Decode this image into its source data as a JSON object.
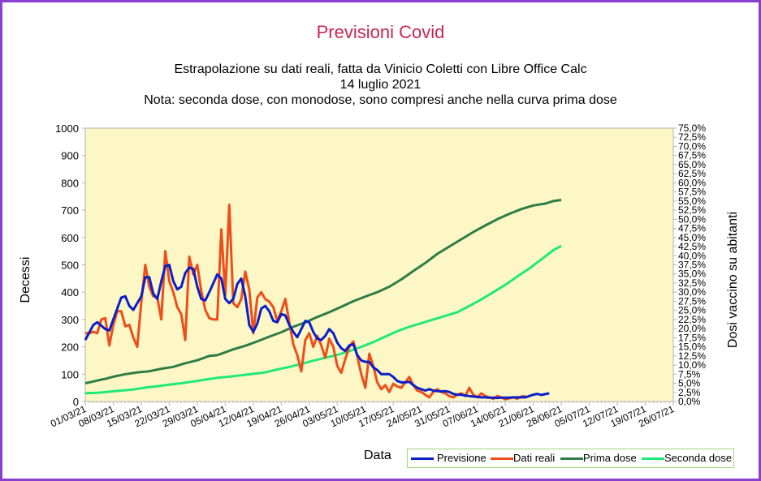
{
  "chart_data": {
    "type": "line",
    "title": "Previsioni Covid",
    "subtitle_lines": [
      "Estrapolazione su dati reali, fatta da Vinicio Coletti con Libre Office Calc",
      "14 luglio 2021",
      "Nota: seconda dose, con monodose, sono compresi anche nella curva prima dose"
    ],
    "xlabel": "Data",
    "ylabel": "Decessi",
    "y2label": "Dosi vaccino su abitanti",
    "ylim": [
      0,
      1000
    ],
    "y2lim": [
      0,
      75
    ],
    "y_ticks": [
      "0",
      "100",
      "200",
      "300",
      "400",
      "500",
      "600",
      "700",
      "800",
      "900",
      "1000"
    ],
    "y2_ticks": [
      "0,0%",
      "2,5%",
      "5,0%",
      "7,5%",
      "10,0%",
      "12,5%",
      "15,0%",
      "17,5%",
      "20,0%",
      "22,5%",
      "25,0%",
      "27,5%",
      "30,0%",
      "32,5%",
      "35,0%",
      "37,5%",
      "40,0%",
      "42,5%",
      "45,0%",
      "47,5%",
      "50,0%",
      "52,5%",
      "55,0%",
      "57,5%",
      "60,0%",
      "62,5%",
      "65,0%",
      "67,5%",
      "70,0%",
      "72,5%",
      "75,0%"
    ],
    "x_ticks": [
      "01/03/21",
      "08/03/21",
      "15/03/21",
      "22/03/21",
      "29/03/21",
      "05/04/21",
      "12/04/21",
      "19/04/21",
      "26/04/21",
      "03/05/21",
      "10/05/21",
      "17/05/21",
      "24/05/21",
      "31/05/21",
      "07/06/21",
      "14/06/21",
      "21/06/21",
      "28/06/21",
      "05/07/21",
      "12/07/21",
      "19/07/21",
      "26/07/21"
    ],
    "grid": false,
    "legend_position": "bottom-right",
    "series": [
      {
        "name": "Previsione",
        "axis": "left",
        "color": "#0a1fc8",
        "points": [
          [
            0,
            225
          ],
          [
            2,
            280
          ],
          [
            3,
            290
          ],
          [
            5,
            265
          ],
          [
            6,
            260
          ],
          [
            8,
            340
          ],
          [
            9,
            380
          ],
          [
            10,
            385
          ],
          [
            11,
            350
          ],
          [
            12,
            335
          ],
          [
            14,
            385
          ],
          [
            15,
            455
          ],
          [
            16,
            455
          ],
          [
            17,
            395
          ],
          [
            18,
            375
          ],
          [
            19,
            440
          ],
          [
            20,
            495
          ],
          [
            21,
            500
          ],
          [
            22,
            440
          ],
          [
            23,
            410
          ],
          [
            24,
            420
          ],
          [
            25,
            470
          ],
          [
            26,
            490
          ],
          [
            27,
            485
          ],
          [
            28,
            420
          ],
          [
            29,
            375
          ],
          [
            30,
            370
          ],
          [
            31,
            400
          ],
          [
            33,
            465
          ],
          [
            34,
            450
          ],
          [
            35,
            375
          ],
          [
            36,
            360
          ],
          [
            37,
            375
          ],
          [
            38,
            430
          ],
          [
            39,
            450
          ],
          [
            40,
            385
          ],
          [
            41,
            280
          ],
          [
            42,
            255
          ],
          [
            43,
            285
          ],
          [
            44,
            340
          ],
          [
            45,
            350
          ],
          [
            46,
            330
          ],
          [
            47,
            295
          ],
          [
            48,
            290
          ],
          [
            49,
            320
          ],
          [
            50,
            315
          ],
          [
            51,
            280
          ],
          [
            52,
            255
          ],
          [
            53,
            235
          ],
          [
            54,
            265
          ],
          [
            55,
            295
          ],
          [
            56,
            290
          ],
          [
            57,
            255
          ],
          [
            58,
            230
          ],
          [
            59,
            225
          ],
          [
            60,
            240
          ],
          [
            61,
            265
          ],
          [
            62,
            250
          ],
          [
            63,
            215
          ],
          [
            64,
            195
          ],
          [
            65,
            185
          ],
          [
            66,
            205
          ],
          [
            67,
            210
          ],
          [
            68,
            170
          ],
          [
            69,
            150
          ],
          [
            70,
            145
          ],
          [
            71,
            145
          ],
          [
            72,
            125
          ],
          [
            73,
            115
          ],
          [
            74,
            100
          ],
          [
            75,
            100
          ],
          [
            76,
            100
          ],
          [
            77,
            90
          ],
          [
            78,
            75
          ],
          [
            79,
            70
          ],
          [
            80,
            70
          ],
          [
            81,
            72
          ],
          [
            82,
            60
          ],
          [
            83,
            50
          ],
          [
            84,
            45
          ],
          [
            85,
            40
          ],
          [
            86,
            45
          ],
          [
            87,
            40
          ],
          [
            88,
            38
          ],
          [
            89,
            37
          ],
          [
            90,
            38
          ],
          [
            91,
            35
          ],
          [
            92,
            28
          ],
          [
            93,
            25
          ],
          [
            94,
            25
          ],
          [
            95,
            22
          ],
          [
            96,
            20
          ],
          [
            97,
            18
          ],
          [
            98,
            17
          ],
          [
            99,
            15
          ],
          [
            100,
            15
          ],
          [
            101,
            14
          ],
          [
            102,
            14
          ],
          [
            103,
            13
          ],
          [
            104,
            14
          ],
          [
            105,
            14
          ],
          [
            106,
            14
          ],
          [
            107,
            15
          ],
          [
            108,
            15
          ],
          [
            109,
            15
          ],
          [
            110,
            15
          ],
          [
            112,
            25
          ],
          [
            113,
            28
          ],
          [
            114,
            24
          ],
          [
            115,
            27
          ],
          [
            116,
            30
          ]
        ]
      },
      {
        "name": "Dati reali",
        "axis": "left",
        "color": "#ef4d1a",
        "points": [
          [
            0,
            250
          ],
          [
            1,
            250
          ],
          [
            2,
            255
          ],
          [
            3,
            250
          ],
          [
            4,
            300
          ],
          [
            5,
            305
          ],
          [
            6,
            205
          ],
          [
            7,
            280
          ],
          [
            8,
            330
          ],
          [
            9,
            330
          ],
          [
            10,
            275
          ],
          [
            11,
            280
          ],
          [
            12,
            235
          ],
          [
            13,
            200
          ],
          [
            14,
            365
          ],
          [
            15,
            500
          ],
          [
            16,
            420
          ],
          [
            17,
            385
          ],
          [
            18,
            380
          ],
          [
            19,
            300
          ],
          [
            20,
            550
          ],
          [
            21,
            440
          ],
          [
            22,
            400
          ],
          [
            23,
            345
          ],
          [
            24,
            320
          ],
          [
            25,
            225
          ],
          [
            26,
            530
          ],
          [
            27,
            465
          ],
          [
            28,
            500
          ],
          [
            29,
            405
          ],
          [
            30,
            335
          ],
          [
            31,
            305
          ],
          [
            32,
            300
          ],
          [
            33,
            300
          ],
          [
            34,
            630
          ],
          [
            35,
            390
          ],
          [
            36,
            720
          ],
          [
            37,
            360
          ],
          [
            38,
            345
          ],
          [
            39,
            375
          ],
          [
            40,
            475
          ],
          [
            41,
            410
          ],
          [
            42,
            250
          ],
          [
            43,
            380
          ],
          [
            44,
            400
          ],
          [
            45,
            375
          ],
          [
            46,
            365
          ],
          [
            47,
            345
          ],
          [
            48,
            295
          ],
          [
            49,
            330
          ],
          [
            50,
            375
          ],
          [
            51,
            290
          ],
          [
            52,
            210
          ],
          [
            53,
            170
          ],
          [
            54,
            110
          ],
          [
            55,
            225
          ],
          [
            56,
            250
          ],
          [
            57,
            200
          ],
          [
            58,
            240
          ],
          [
            59,
            205
          ],
          [
            60,
            160
          ],
          [
            61,
            230
          ],
          [
            62,
            200
          ],
          [
            63,
            130
          ],
          [
            64,
            105
          ],
          [
            65,
            155
          ],
          [
            66,
            200
          ],
          [
            67,
            220
          ],
          [
            68,
            165
          ],
          [
            69,
            100
          ],
          [
            70,
            50
          ],
          [
            71,
            175
          ],
          [
            72,
            130
          ],
          [
            73,
            70
          ],
          [
            74,
            45
          ],
          [
            75,
            60
          ],
          [
            76,
            35
          ],
          [
            77,
            65
          ],
          [
            78,
            55
          ],
          [
            79,
            50
          ],
          [
            80,
            70
          ],
          [
            81,
            90
          ],
          [
            82,
            60
          ],
          [
            83,
            40
          ],
          [
            84,
            35
          ],
          [
            85,
            25
          ],
          [
            86,
            15
          ],
          [
            87,
            35
          ],
          [
            88,
            45
          ],
          [
            89,
            35
          ],
          [
            90,
            30
          ],
          [
            91,
            20
          ],
          [
            92,
            15
          ],
          [
            93,
            25
          ],
          [
            94,
            30
          ],
          [
            95,
            20
          ],
          [
            96,
            50
          ],
          [
            97,
            25
          ],
          [
            98,
            15
          ],
          [
            99,
            30
          ],
          [
            100,
            20
          ],
          [
            101,
            15
          ],
          [
            102,
            10
          ],
          [
            103,
            20
          ],
          [
            104,
            15
          ],
          [
            105,
            8
          ],
          [
            106,
            12
          ],
          [
            107,
            15
          ],
          [
            108,
            10
          ],
          [
            109,
            18
          ],
          [
            110,
            20
          ]
        ]
      },
      {
        "name": "Prima dose",
        "axis": "right",
        "color": "#2e7d46",
        "points": [
          [
            0,
            5.0
          ],
          [
            2,
            5.5
          ],
          [
            4,
            6.0
          ],
          [
            5,
            6.2
          ],
          [
            7,
            6.8
          ],
          [
            10,
            7.5
          ],
          [
            13,
            8.0
          ],
          [
            16,
            8.3
          ],
          [
            19,
            9.0
          ],
          [
            22,
            9.5
          ],
          [
            25,
            10.5
          ],
          [
            28,
            11.3
          ],
          [
            31,
            12.5
          ],
          [
            33,
            12.7
          ],
          [
            35,
            13.5
          ],
          [
            37,
            14.3
          ],
          [
            40,
            15.3
          ],
          [
            43,
            16.5
          ],
          [
            46,
            17.8
          ],
          [
            49,
            19.0
          ],
          [
            52,
            20.5
          ],
          [
            55,
            21.7
          ],
          [
            58,
            23.2
          ],
          [
            61,
            24.5
          ],
          [
            64,
            26.0
          ],
          [
            67,
            27.5
          ],
          [
            70,
            28.8
          ],
          [
            73,
            30.0
          ],
          [
            76,
            31.5
          ],
          [
            79,
            33.5
          ],
          [
            82,
            35.8
          ],
          [
            85,
            38.0
          ],
          [
            88,
            40.5
          ],
          [
            91,
            42.5
          ],
          [
            94,
            44.5
          ],
          [
            97,
            46.5
          ],
          [
            100,
            48.3
          ],
          [
            103,
            50.0
          ],
          [
            106,
            51.5
          ],
          [
            109,
            52.8
          ],
          [
            112,
            53.8
          ],
          [
            115,
            54.3
          ],
          [
            117,
            55.0
          ],
          [
            119,
            55.3
          ]
        ]
      },
      {
        "name": "Seconda dose",
        "axis": "right",
        "color": "#22e87a",
        "points": [
          [
            0,
            2.3
          ],
          [
            3,
            2.4
          ],
          [
            6,
            2.7
          ],
          [
            9,
            3.0
          ],
          [
            12,
            3.3
          ],
          [
            15,
            3.8
          ],
          [
            18,
            4.2
          ],
          [
            21,
            4.6
          ],
          [
            24,
            5.0
          ],
          [
            27,
            5.5
          ],
          [
            30,
            6.0
          ],
          [
            33,
            6.5
          ],
          [
            36,
            6.8
          ],
          [
            39,
            7.2
          ],
          [
            42,
            7.6
          ],
          [
            45,
            8.0
          ],
          [
            48,
            8.8
          ],
          [
            51,
            9.5
          ],
          [
            54,
            10.3
          ],
          [
            57,
            11.2
          ],
          [
            60,
            12.0
          ],
          [
            63,
            12.8
          ],
          [
            66,
            13.8
          ],
          [
            69,
            15.0
          ],
          [
            72,
            16.3
          ],
          [
            75,
            17.8
          ],
          [
            78,
            19.3
          ],
          [
            81,
            20.5
          ],
          [
            84,
            21.5
          ],
          [
            87,
            22.5
          ],
          [
            90,
            23.5
          ],
          [
            93,
            24.5
          ],
          [
            96,
            26.2
          ],
          [
            99,
            28.0
          ],
          [
            102,
            30.0
          ],
          [
            105,
            32.0
          ],
          [
            108,
            34.3
          ],
          [
            111,
            36.5
          ],
          [
            114,
            39.0
          ],
          [
            117,
            41.5
          ],
          [
            119,
            42.7
          ]
        ]
      }
    ]
  }
}
